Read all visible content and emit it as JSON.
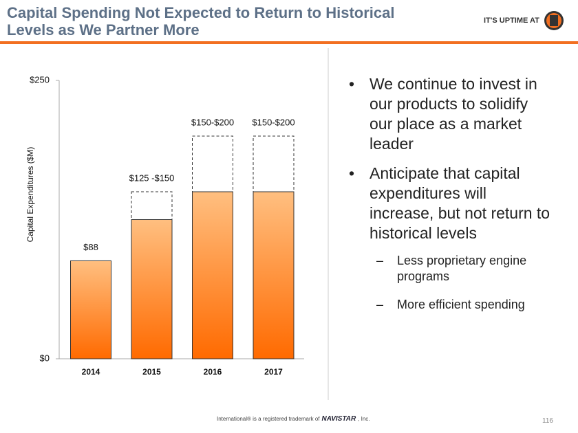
{
  "header": {
    "title_lines": [
      "Capital Spending Not Expected to Return to Historical",
      "Levels as We Partner More"
    ],
    "logo_text": "IT'S UPTIME AT"
  },
  "chart_data": {
    "type": "bar",
    "ylabel": "Capital Expenditures ($M)",
    "categories": [
      "2014",
      "2015",
      "2016",
      "2017"
    ],
    "values": [
      88,
      125,
      150,
      150
    ],
    "range_high": [
      null,
      150,
      200,
      200
    ],
    "value_labels": [
      "$88",
      "$125 -$150",
      "$150-$200",
      "$150-$200"
    ],
    "color": "#ff6a00",
    "ylim": [
      0,
      250
    ],
    "yticks": [
      {
        "value": 0,
        "label": "$0"
      },
      {
        "value": 250,
        "label": "$250"
      }
    ]
  },
  "bullets": [
    {
      "text": "We continue to invest in our products to solidify our place as a market leader",
      "sub": []
    },
    {
      "text": "Anticipate that capital expenditures will increase, but not return to historical levels",
      "sub": [
        "Less proprietary engine programs",
        "More efficient spending"
      ]
    }
  ],
  "footer": {
    "trademark_prefix": "International® is a registered trademark of",
    "brand": "NAVISTAR",
    "trademark_suffix": ", Inc.",
    "page_number": "116"
  }
}
